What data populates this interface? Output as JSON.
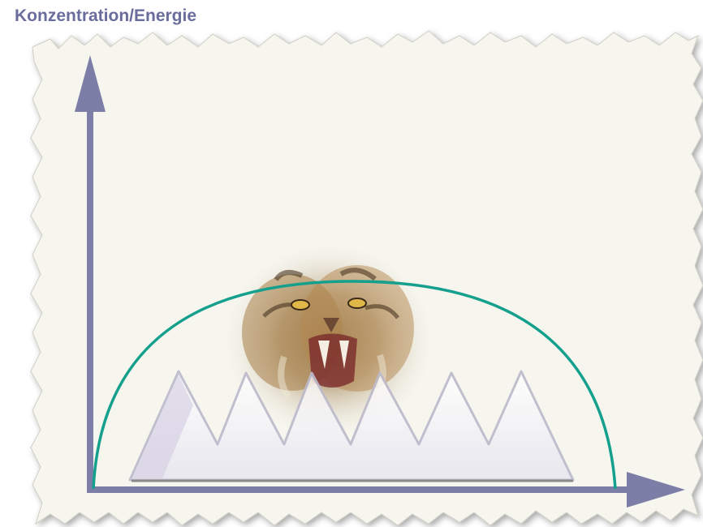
{
  "title": "Konzentration/Energie",
  "colors": {
    "axis": "#7c7ea8",
    "curve": "#14a08c",
    "paper": "#f6f6ef",
    "title": "#6a6d9c"
  },
  "illustration": "tiger-head",
  "diagram": {
    "curve": "semicircle-arc",
    "peaks_count": 6
  }
}
